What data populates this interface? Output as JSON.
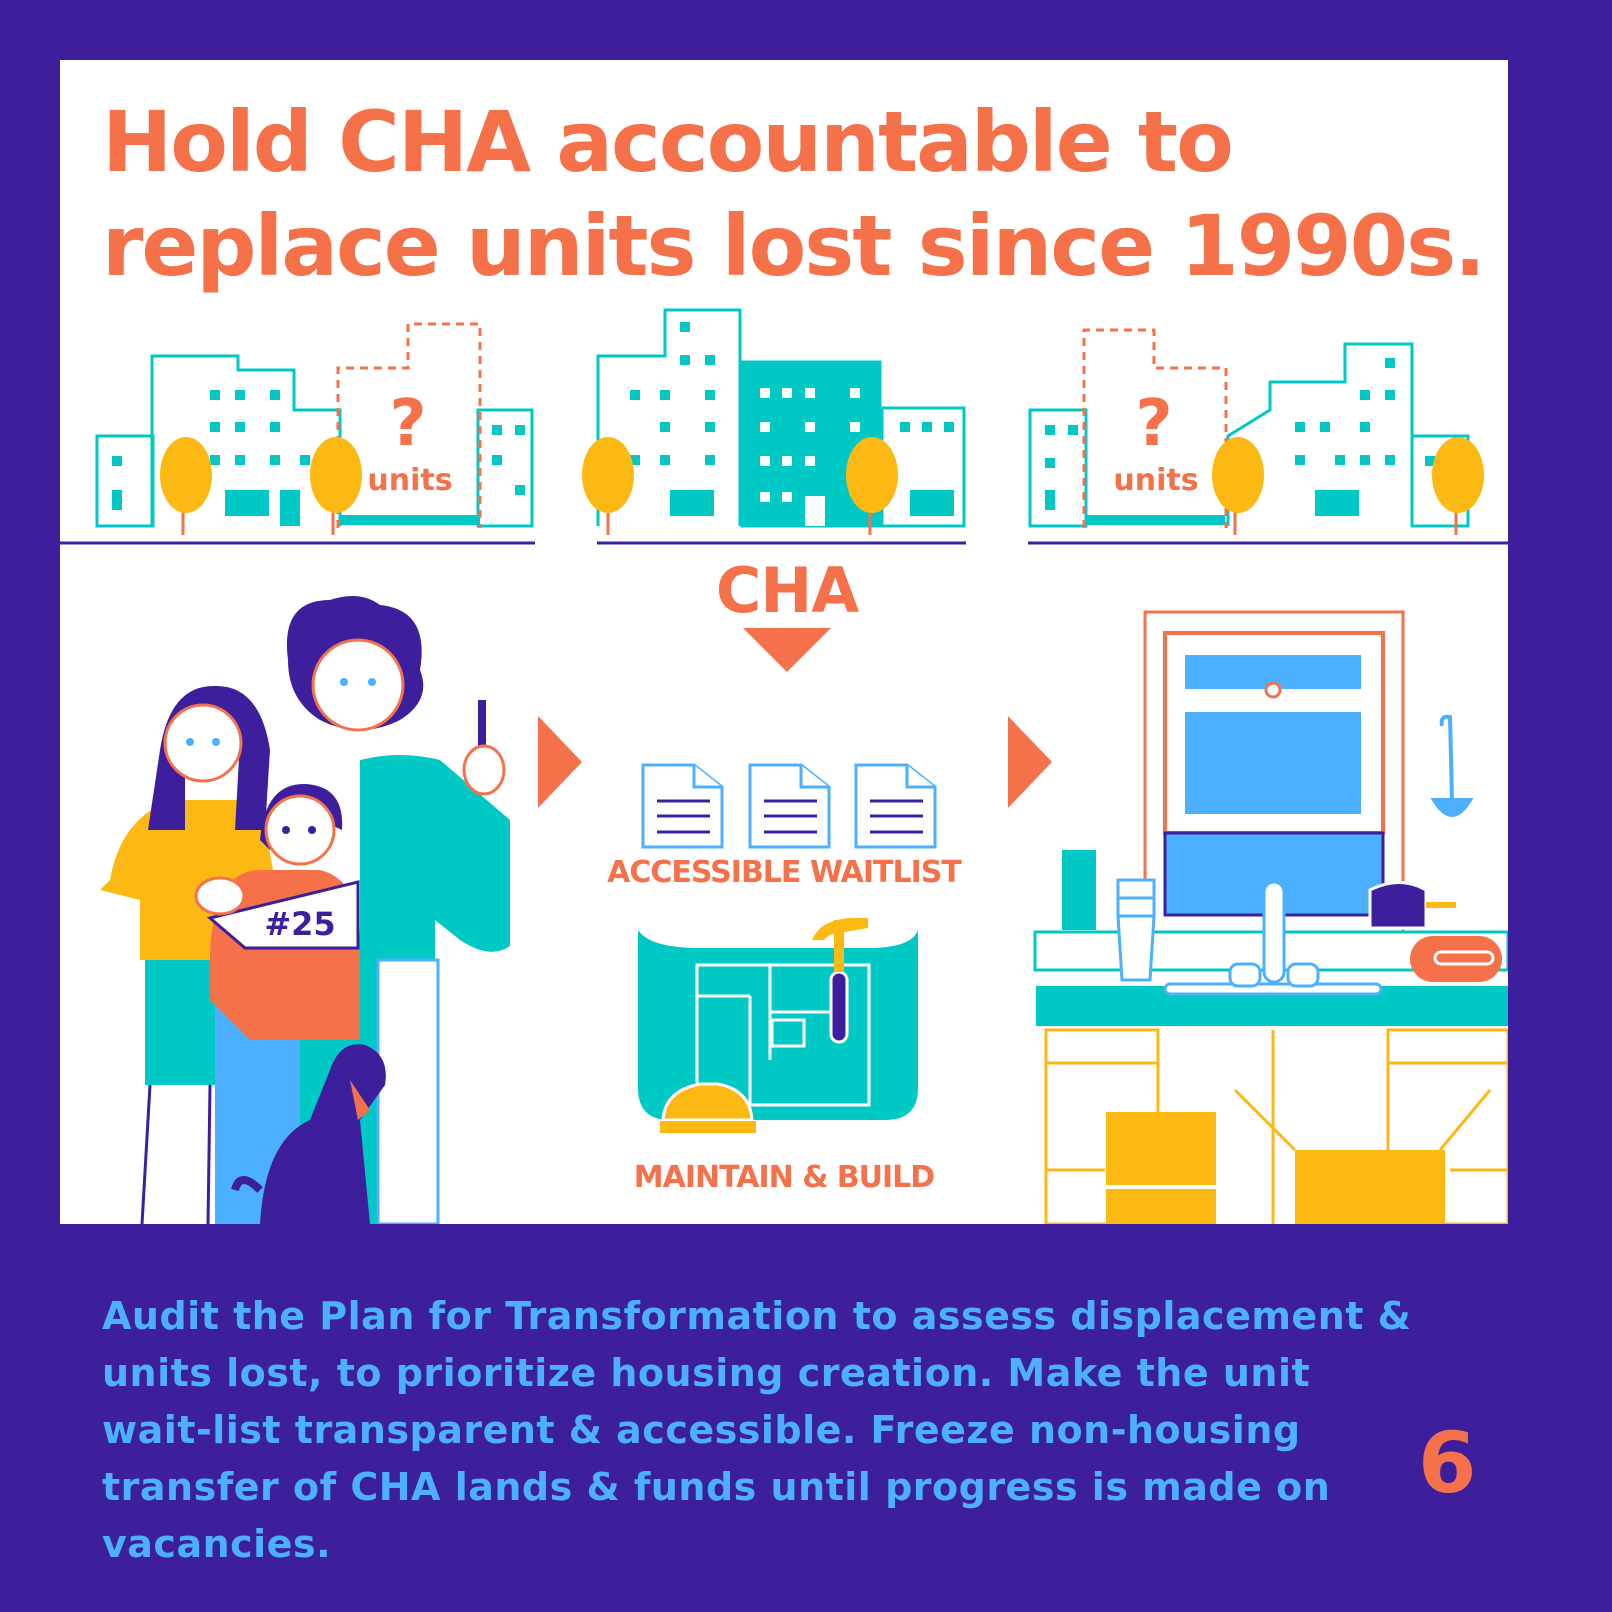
{
  "title": {
    "line1": "Hold CHA accountable to",
    "line2": "replace units lost since 1990s."
  },
  "buildings": {
    "left_placeholder": {
      "symbol": "?",
      "label": "units"
    },
    "right_placeholder": {
      "symbol": "?",
      "label": "units"
    }
  },
  "flow": {
    "agency_label": "CHA",
    "waitlist_label": "ACCESSIBLE WAITLIST",
    "build_label": "MAINTAIN & BUILD",
    "ticket_number": "#25"
  },
  "body": {
    "text": "Audit the Plan for Transformation to assess displacement & units lost, to prioritize housing creation. Make the unit wait-list transparent & accessible. Freeze non-housing transfer of CHA lands & funds until progress is made on vacancies."
  },
  "page_number": "6",
  "colors": {
    "background": "#3d1f9e",
    "accent": "#f4714a",
    "teal": "#00c9c5",
    "blue": "#4cb0ff",
    "yellow": "#fdb913"
  }
}
